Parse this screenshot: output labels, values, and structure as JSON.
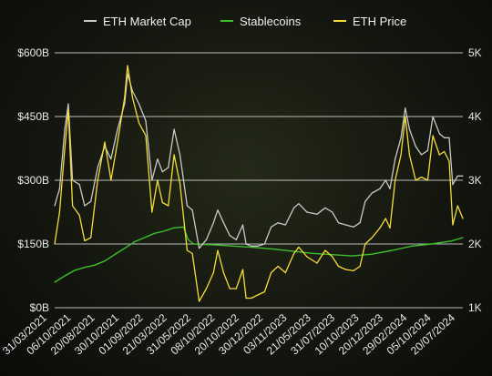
{
  "chart_data": {
    "type": "line",
    "title": "",
    "xlabel": "",
    "y_left": {
      "label": "",
      "ticks": [
        "$0B",
        "$150B",
        "$300B",
        "$450B",
        "$600B"
      ],
      "tick_values": [
        0,
        150,
        300,
        450,
        600
      ],
      "range": [
        0,
        600
      ],
      "unit": "USD billions"
    },
    "y_right": {
      "label": "",
      "ticks": [
        "1K",
        "2K",
        "3K",
        "4K",
        "5K"
      ],
      "tick_values": [
        1000,
        2000,
        3000,
        4000,
        5000
      ],
      "range": [
        1000,
        5000
      ],
      "unit": "USD"
    },
    "x_ticks": [
      "31/03/2021",
      "06/10/2021",
      "20/08/2021",
      "30/10/2021",
      "01/09/2022",
      "21/03/2022",
      "31/05/2022",
      "08/10/2022",
      "20/10/2022",
      "30/12/2022",
      "03/11/2023",
      "21/05/2023",
      "31/07/2023",
      "10/10/2023",
      "20/12/2023",
      "29/02/2024",
      "05/10/2024",
      "20/07/2024"
    ],
    "x_range": [
      "2021-03-31",
      "2024-09-05"
    ],
    "grid": "horizontal",
    "legend_position": "top",
    "series": [
      {
        "name": "ETH Market Cap",
        "axis": "left",
        "color": "#c8c8c8",
        "x": [
          "2021-03-31",
          "2021-04-15",
          "2021-05-01",
          "2021-05-12",
          "2021-05-25",
          "2021-06-15",
          "2021-07-01",
          "2021-07-20",
          "2021-08-10",
          "2021-09-01",
          "2021-09-20",
          "2021-10-10",
          "2021-11-01",
          "2021-11-10",
          "2021-11-25",
          "2021-12-15",
          "2022-01-05",
          "2022-01-24",
          "2022-02-10",
          "2022-02-25",
          "2022-03-15",
          "2022-04-02",
          "2022-04-20",
          "2022-05-12",
          "2022-05-28",
          "2022-06-18",
          "2022-07-10",
          "2022-08-01",
          "2022-08-14",
          "2022-09-01",
          "2022-09-20",
          "2022-10-10",
          "2022-10-30",
          "2022-11-09",
          "2022-11-25",
          "2022-12-15",
          "2023-01-05",
          "2023-01-25",
          "2023-02-15",
          "2023-03-10",
          "2023-04-05",
          "2023-04-20",
          "2023-05-15",
          "2023-06-15",
          "2023-07-10",
          "2023-08-01",
          "2023-08-20",
          "2023-09-11",
          "2023-10-05",
          "2023-10-25",
          "2023-11-10",
          "2023-12-01",
          "2023-12-25",
          "2024-01-12",
          "2024-01-25",
          "2024-02-10",
          "2024-02-28",
          "2024-03-12",
          "2024-03-25",
          "2024-04-13",
          "2024-05-01",
          "2024-05-20",
          "2024-06-05",
          "2024-06-25",
          "2024-07-10",
          "2024-07-25",
          "2024-08-05",
          "2024-08-20",
          "2024-09-05"
        ],
        "values": [
          240,
          280,
          420,
          480,
          300,
          290,
          240,
          250,
          330,
          380,
          350,
          420,
          480,
          550,
          510,
          480,
          440,
          300,
          350,
          320,
          330,
          420,
          360,
          240,
          230,
          140,
          160,
          200,
          230,
          200,
          170,
          160,
          195,
          150,
          145,
          145,
          150,
          190,
          200,
          195,
          235,
          245,
          225,
          220,
          235,
          225,
          200,
          195,
          190,
          200,
          250,
          270,
          280,
          300,
          280,
          350,
          400,
          470,
          420,
          380,
          360,
          370,
          450,
          410,
          400,
          400,
          290,
          310,
          310
        ]
      },
      {
        "name": "Stablecoins",
        "axis": "left",
        "color": "#3fbf2c",
        "x": [
          "2021-03-31",
          "2021-05-01",
          "2021-06-01",
          "2021-07-01",
          "2021-08-01",
          "2021-09-01",
          "2021-10-01",
          "2021-11-01",
          "2021-12-01",
          "2022-01-01",
          "2022-02-01",
          "2022-03-01",
          "2022-04-01",
          "2022-05-01",
          "2022-05-15",
          "2022-06-01",
          "2022-08-01",
          "2022-10-01",
          "2022-12-01",
          "2023-02-01",
          "2023-04-01",
          "2023-06-01",
          "2023-08-01",
          "2023-10-01",
          "2023-12-01",
          "2024-02-01",
          "2024-04-01",
          "2024-06-01",
          "2024-08-01",
          "2024-09-05"
        ],
        "values": [
          60,
          75,
          88,
          95,
          100,
          110,
          125,
          140,
          155,
          165,
          175,
          180,
          188,
          190,
          160,
          150,
          148,
          145,
          142,
          138,
          133,
          128,
          125,
          122,
          126,
          135,
          145,
          150,
          157,
          165
        ]
      },
      {
        "name": "ETH Price",
        "axis": "right",
        "color": "#f5dc3a",
        "x": [
          "2021-03-31",
          "2021-04-15",
          "2021-05-01",
          "2021-05-12",
          "2021-05-25",
          "2021-06-15",
          "2021-07-01",
          "2021-07-20",
          "2021-08-10",
          "2021-09-01",
          "2021-09-20",
          "2021-10-10",
          "2021-11-01",
          "2021-11-10",
          "2021-11-25",
          "2021-12-15",
          "2022-01-05",
          "2022-01-24",
          "2022-02-10",
          "2022-02-25",
          "2022-03-15",
          "2022-04-02",
          "2022-04-20",
          "2022-05-12",
          "2022-05-28",
          "2022-06-18",
          "2022-07-10",
          "2022-08-01",
          "2022-08-14",
          "2022-09-01",
          "2022-09-20",
          "2022-10-10",
          "2022-10-30",
          "2022-11-09",
          "2022-11-25",
          "2022-12-15",
          "2023-01-05",
          "2023-01-25",
          "2023-02-15",
          "2023-03-10",
          "2023-04-05",
          "2023-04-20",
          "2023-05-15",
          "2023-06-15",
          "2023-07-10",
          "2023-08-01",
          "2023-08-20",
          "2023-09-11",
          "2023-10-05",
          "2023-10-25",
          "2023-11-10",
          "2023-12-01",
          "2023-12-25",
          "2024-01-12",
          "2024-01-25",
          "2024-02-10",
          "2024-02-28",
          "2024-03-12",
          "2024-03-25",
          "2024-04-13",
          "2024-05-01",
          "2024-05-20",
          "2024-06-05",
          "2024-06-25",
          "2024-07-10",
          "2024-07-25",
          "2024-08-05",
          "2024-08-20",
          "2024-09-05"
        ],
        "values": [
          2000,
          2500,
          3500,
          4100,
          2600,
          2450,
          2050,
          2100,
          3000,
          3600,
          3000,
          3600,
          4300,
          4800,
          4300,
          3900,
          3700,
          2500,
          3000,
          2650,
          2600,
          3400,
          2950,
          1900,
          1850,
          1100,
          1300,
          1550,
          1900,
          1550,
          1300,
          1300,
          1600,
          1150,
          1150,
          1200,
          1250,
          1550,
          1650,
          1550,
          1850,
          1950,
          1800,
          1700,
          1900,
          1800,
          1650,
          1600,
          1580,
          1650,
          2000,
          2100,
          2250,
          2400,
          2250,
          3000,
          3400,
          4000,
          3400,
          3000,
          3050,
          3000,
          3700,
          3400,
          3450,
          3300,
          2300,
          2600,
          2400
        ]
      }
    ]
  }
}
